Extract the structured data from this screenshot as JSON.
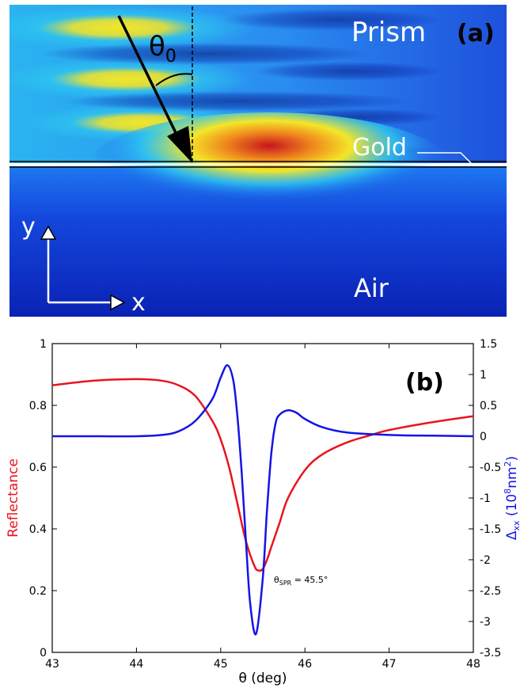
{
  "panel_a": {
    "panel_label": "(a)",
    "region_labels": {
      "prism": "Prism",
      "gold": "Gold",
      "air": "Air"
    },
    "angle_label": "θ",
    "angle_subscript": "0",
    "axis_x": "x",
    "axis_y": "y",
    "colors": {
      "dark_blue": "#0a1a9c",
      "blue": "#1e64f0",
      "cyan": "#2ec8f0",
      "yellow": "#f4e628",
      "orange": "#f08c1e",
      "red": "#c8141e"
    }
  },
  "chart_data": {
    "type": "line",
    "panel_label": "(b)",
    "xlabel": "θ (deg)",
    "ylabel_left": "Reflectance",
    "ylabel_right": {
      "base": "Δ",
      "sub": "xx",
      "unit_open": " (10",
      "sup1": "8",
      "unit_mid": "nm",
      "sup2": "2",
      "unit_close": ")"
    },
    "xlim": [
      43,
      48
    ],
    "ylim_left": [
      0,
      1
    ],
    "ylim_right": [
      -3.5,
      1.5
    ],
    "x_ticks": [
      "43",
      "44",
      "45",
      "46",
      "47",
      "48"
    ],
    "y_ticks_left": [
      "0",
      "0.2",
      "0.4",
      "0.6",
      "0.8",
      "1"
    ],
    "y_ticks_right": [
      "1.5",
      "1",
      "0.5",
      "0",
      "-0.5",
      "-1",
      "-1.5",
      "-2",
      "-2.5",
      "-3",
      "-3.5"
    ],
    "annotation": {
      "main": "θ",
      "sub": "SPR",
      "rest": " = 45.5°"
    },
    "series": [
      {
        "axis": "left",
        "color": "#e8141e",
        "x": [
          43,
          43.5,
          44,
          44.3,
          44.5,
          44.7,
          44.9,
          45.0,
          45.1,
          45.2,
          45.3,
          45.4,
          45.45,
          45.5,
          45.55,
          45.6,
          45.7,
          45.8,
          46.0,
          46.2,
          46.5,
          46.8,
          47.0,
          47.5,
          48
        ],
        "values": [
          0.865,
          0.88,
          0.885,
          0.88,
          0.865,
          0.83,
          0.75,
          0.69,
          0.6,
          0.48,
          0.36,
          0.28,
          0.265,
          0.27,
          0.3,
          0.34,
          0.42,
          0.5,
          0.59,
          0.64,
          0.68,
          0.705,
          0.72,
          0.745,
          0.765
        ]
      },
      {
        "axis": "right",
        "color": "#1414e6",
        "x": [
          43,
          43.5,
          44,
          44.3,
          44.5,
          44.7,
          44.9,
          45.0,
          45.08,
          45.15,
          45.2,
          45.25,
          45.3,
          45.35,
          45.42,
          45.5,
          45.55,
          45.6,
          45.65,
          45.7,
          45.8,
          45.9,
          46.0,
          46.2,
          46.5,
          47,
          47.5,
          48
        ],
        "values": [
          0,
          0,
          0,
          0.02,
          0.08,
          0.25,
          0.6,
          0.95,
          1.15,
          0.9,
          0.3,
          -0.6,
          -1.7,
          -2.7,
          -3.2,
          -2.3,
          -1.2,
          -0.3,
          0.2,
          0.35,
          0.42,
          0.38,
          0.28,
          0.15,
          0.06,
          0.02,
          0.01,
          0
        ]
      }
    ]
  }
}
